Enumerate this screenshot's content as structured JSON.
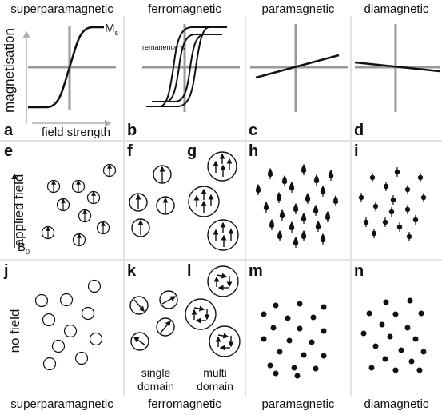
{
  "headers": {
    "superparamagnetic": "superparamagnetic",
    "ferromagnetic": "ferromagnetic",
    "paramagnetic": "paramagnetic",
    "diamagnetic": "diamagnetic"
  },
  "footers": {
    "superparamagnetic": "superparamagnetic",
    "ferromagnetic": "ferromagnetic",
    "paramagnetic": "paramagnetic",
    "diamagnetic": "diamagnetic"
  },
  "axes": {
    "y_label": "magnetisation",
    "x_label": "field strength",
    "ms": "M",
    "ms_sub": "s",
    "remanence": "remanence"
  },
  "panel_labels": [
    "a",
    "b",
    "c",
    "d",
    "e",
    "f",
    "g",
    "h",
    "i",
    "j",
    "k",
    "l",
    "m",
    "n"
  ],
  "row_labels": {
    "applied_field": "applied field",
    "b0": "B",
    "b0_sub": "0",
    "no_field": "no field"
  },
  "domain_labels": {
    "single": "single domain",
    "multi": "multi domain"
  },
  "colors": {
    "axis_gray": "#9a9a9a",
    "divider": "#e2e2e2",
    "ink": "#111111"
  }
}
